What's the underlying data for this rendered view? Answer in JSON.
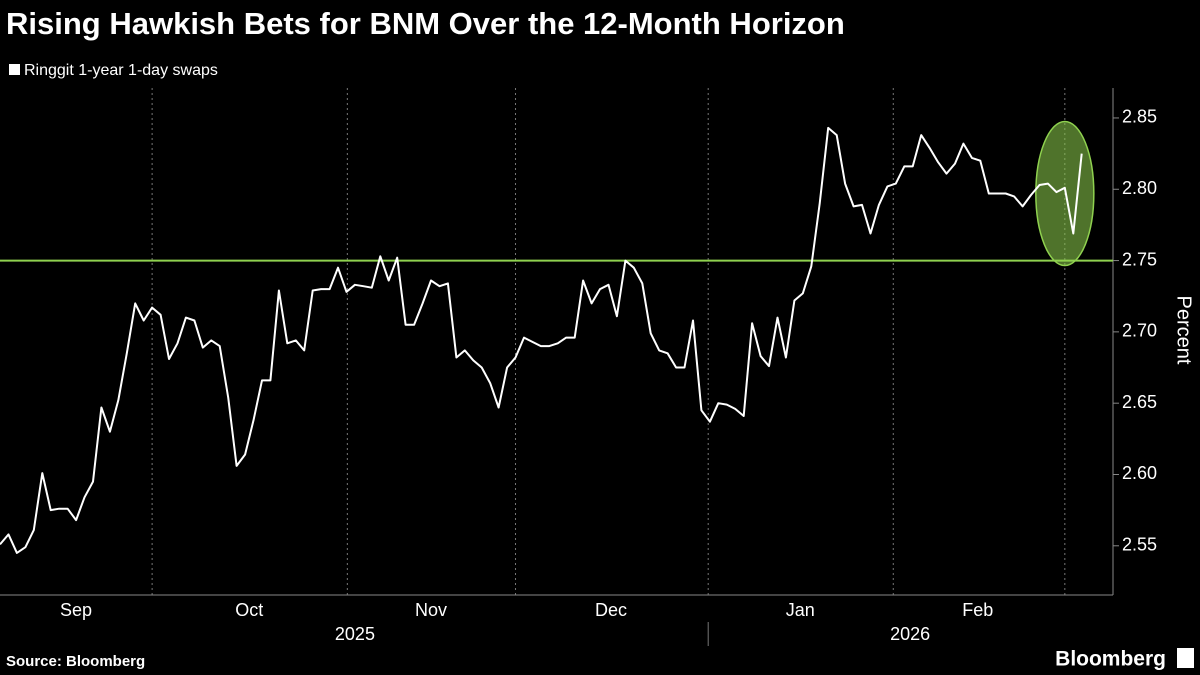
{
  "chart_data": {
    "type": "line",
    "title": "Rising Hawkish Bets for BNM Over the 12-Month Horizon",
    "y_label": "Percent",
    "source": "Source: Bloomberg",
    "brand": "Bloomberg",
    "series": [
      {
        "name": "Ringgit 1-year 1-day swaps",
        "color": "#ffffff",
        "values": [
          2.551,
          2.558,
          2.545,
          2.549,
          2.561,
          2.601,
          2.575,
          2.576,
          2.576,
          2.568,
          2.584,
          2.595,
          2.647,
          2.63,
          2.652,
          2.685,
          2.72,
          2.708,
          2.717,
          2.712,
          2.681,
          2.692,
          2.71,
          2.708,
          2.689,
          2.694,
          2.69,
          2.654,
          2.606,
          2.614,
          2.638,
          2.666,
          2.666,
          2.729,
          2.692,
          2.694,
          2.687,
          2.729,
          2.73,
          2.73,
          2.745,
          2.728,
          2.733,
          2.732,
          2.731,
          2.753,
          2.736,
          2.752,
          2.705,
          2.705,
          2.72,
          2.736,
          2.732,
          2.734,
          2.682,
          2.687,
          2.68,
          2.675,
          2.664,
          2.647,
          2.675,
          2.682,
          2.696,
          2.693,
          2.69,
          2.69,
          2.692,
          2.696,
          2.696,
          2.736,
          2.72,
          2.73,
          2.733,
          2.711,
          2.75,
          2.745,
          2.734,
          2.699,
          2.687,
          2.685,
          2.675,
          2.675,
          2.708,
          2.645,
          2.637,
          2.65,
          2.649,
          2.646,
          2.641,
          2.706,
          2.683,
          2.676,
          2.71,
          2.682,
          2.722,
          2.727,
          2.746,
          2.79,
          2.843,
          2.838,
          2.804,
          2.788,
          2.789,
          2.769,
          2.789,
          2.802,
          2.804,
          2.816,
          2.816,
          2.838,
          2.829,
          2.819,
          2.811,
          2.818,
          2.832,
          2.822,
          2.82,
          2.797,
          2.797,
          2.797,
          2.795,
          2.788,
          2.796,
          2.803,
          2.804,
          2.798,
          2.801,
          2.769,
          2.825
        ]
      }
    ],
    "hline": {
      "value": 2.75,
      "color": "#8fd14f"
    },
    "highlight_color": "#8fd14f",
    "ylim": [
      2.5155,
      2.871
    ],
    "yticks": [
      2.55,
      {
        "value": 2.6,
        "label": "2.60"
      },
      2.65,
      {
        "value": 2.7,
        "label": "2.70"
      },
      2.75,
      {
        "value": 2.8,
        "label": "2.80"
      },
      2.85
    ],
    "xlim": [
      0,
      131.7
    ],
    "xticks": [
      {
        "value": 9,
        "label": "Sep"
      },
      {
        "value": 29.5,
        "label": "Oct"
      },
      {
        "value": 51,
        "label": "Nov"
      },
      {
        "value": 72.3,
        "label": "Dec"
      },
      {
        "value": 94.7,
        "label": "Jan"
      },
      {
        "value": 115.7,
        "label": "Feb"
      }
    ],
    "xgrid": [
      18,
      41.1,
      61,
      83.8,
      105.7,
      126
    ],
    "year_labels": [
      {
        "value": 42,
        "label": "2025"
      },
      {
        "value": 107.7,
        "label": "2026"
      }
    ],
    "year_divider": 83.8
  }
}
